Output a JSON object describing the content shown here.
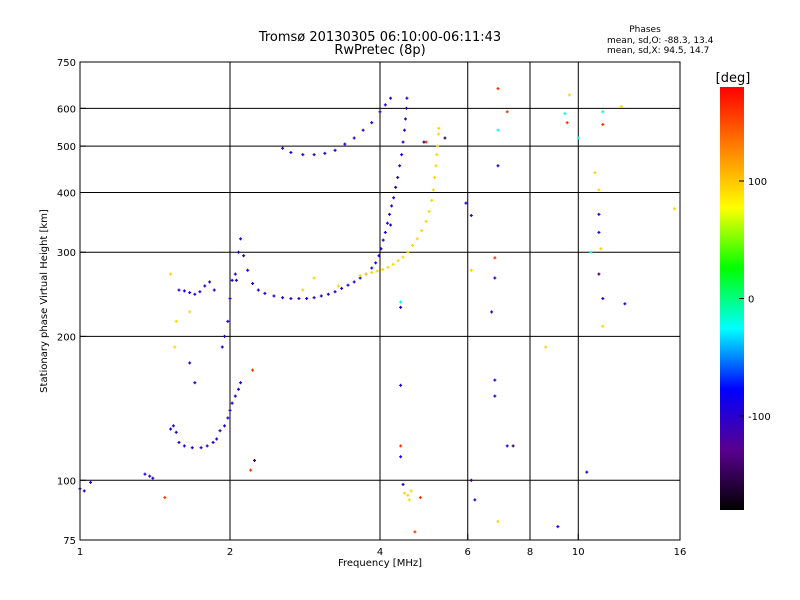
{
  "chart_data": {
    "type": "scatter",
    "title": "Tromsø 20130305 06:10:00-06:11:43",
    "subtitle": "RwPretec (8p)",
    "xlabel": "Frequency [MHz]",
    "ylabel": "Stationary phase Virtual Height [km]",
    "x_scale": "log",
    "y_scale": "log",
    "xlim": [
      1,
      16
    ],
    "ylim": [
      75,
      750
    ],
    "x_ticks": [
      {
        "value": 1,
        "label": "1"
      },
      {
        "value": 2,
        "label": "2"
      },
      {
        "value": 4,
        "label": "4"
      },
      {
        "value": 6,
        "label": "6"
      },
      {
        "value": 8,
        "label": "8"
      },
      {
        "value": 10,
        "label": "10"
      },
      {
        "value": 16,
        "label": "16"
      }
    ],
    "y_ticks": [
      {
        "value": 75,
        "label": "75"
      },
      {
        "value": 100,
        "label": "100"
      },
      {
        "value": 200,
        "label": "200"
      },
      {
        "value": 300,
        "label": "300"
      },
      {
        "value": 400,
        "label": "400"
      },
      {
        "value": 500,
        "label": "500"
      },
      {
        "value": 600,
        "label": "600"
      },
      {
        "value": 750,
        "label": "750"
      }
    ],
    "x_gridlines": [
      2,
      4,
      6,
      8,
      10
    ],
    "y_gridlines": [
      100,
      200,
      300,
      400,
      500,
      600
    ],
    "grid": true,
    "phase_stats": {
      "header": "Phases",
      "line_o": "mean, sd,O:  -88.3, 13.4",
      "line_x": "mean, sd,X:  94.5, 14.7"
    },
    "colorbar": {
      "label": "[deg]",
      "range": [
        -180,
        180
      ],
      "ticks": [
        {
          "value": 100,
          "label": "100"
        },
        {
          "value": 0,
          "label": "0"
        },
        {
          "value": -100,
          "label": "-100"
        }
      ],
      "colors": [
        "#000000",
        "#5a0090",
        "#0000ff",
        "#00ffff",
        "#00ff00",
        "#ffff00",
        "#ff8000",
        "#ff0000"
      ]
    },
    "series": [
      {
        "mode": "O",
        "phase": -95,
        "points": [
          [
            1.0,
            96
          ],
          [
            1.02,
            95
          ],
          [
            1.05,
            99
          ],
          [
            1.35,
            103
          ],
          [
            1.38,
            102
          ],
          [
            1.4,
            101
          ],
          [
            1.52,
            128
          ],
          [
            1.54,
            130
          ],
          [
            1.56,
            126
          ],
          [
            1.58,
            120
          ],
          [
            1.62,
            118
          ],
          [
            1.68,
            117
          ],
          [
            1.75,
            117
          ],
          [
            1.8,
            118
          ],
          [
            1.85,
            120
          ],
          [
            1.88,
            122
          ],
          [
            1.91,
            127
          ],
          [
            1.95,
            130
          ],
          [
            1.98,
            135
          ],
          [
            2.0,
            140
          ],
          [
            2.02,
            145
          ],
          [
            2.05,
            150
          ],
          [
            2.08,
            155
          ],
          [
            2.1,
            160
          ],
          [
            1.66,
            176
          ],
          [
            1.7,
            160
          ],
          [
            1.93,
            190
          ],
          [
            1.95,
            200
          ],
          [
            1.98,
            215
          ],
          [
            2.0,
            240
          ],
          [
            2.02,
            262
          ],
          [
            2.05,
            270
          ],
          [
            1.58,
            250
          ],
          [
            1.62,
            249
          ],
          [
            1.66,
            247
          ],
          [
            1.7,
            245
          ],
          [
            1.74,
            248
          ],
          [
            1.78,
            255
          ],
          [
            1.82,
            260
          ],
          [
            1.86,
            250
          ],
          [
            2.06,
            262
          ],
          [
            2.08,
            300
          ],
          [
            2.1,
            320
          ],
          [
            2.13,
            295
          ],
          [
            2.17,
            275
          ],
          [
            2.22,
            258
          ],
          [
            2.28,
            250
          ],
          [
            2.35,
            246
          ],
          [
            2.45,
            243
          ],
          [
            2.55,
            241
          ],
          [
            2.65,
            240
          ],
          [
            2.75,
            240
          ],
          [
            2.85,
            240
          ],
          [
            2.95,
            241
          ],
          [
            3.05,
            243
          ],
          [
            3.15,
            245
          ],
          [
            3.25,
            248
          ],
          [
            3.35,
            252
          ],
          [
            3.45,
            256
          ],
          [
            3.55,
            260
          ],
          [
            3.65,
            265
          ],
          [
            3.75,
            270
          ],
          [
            3.85,
            278
          ],
          [
            3.92,
            285
          ],
          [
            3.98,
            295
          ],
          [
            4.02,
            305
          ],
          [
            4.06,
            318
          ],
          [
            4.1,
            330
          ],
          [
            4.14,
            345
          ],
          [
            4.18,
            360
          ],
          [
            4.22,
            375
          ],
          [
            4.26,
            390
          ],
          [
            4.3,
            410
          ],
          [
            4.34,
            430
          ],
          [
            4.38,
            455
          ],
          [
            4.42,
            480
          ],
          [
            4.45,
            510
          ],
          [
            4.48,
            540
          ],
          [
            4.5,
            570
          ],
          [
            4.52,
            600
          ],
          [
            4.53,
            630
          ],
          [
            2.55,
            495
          ],
          [
            2.65,
            485
          ],
          [
            2.8,
            480
          ],
          [
            2.95,
            480
          ],
          [
            3.1,
            483
          ],
          [
            3.25,
            490
          ],
          [
            3.4,
            505
          ],
          [
            3.55,
            520
          ],
          [
            3.7,
            540
          ],
          [
            3.85,
            560
          ],
          [
            4.0,
            590
          ],
          [
            4.1,
            610
          ],
          [
            4.2,
            630
          ],
          [
            4.4,
            112
          ],
          [
            4.45,
            98
          ],
          [
            4.4,
            158
          ],
          [
            4.2,
            342
          ],
          [
            5.95,
            380
          ],
          [
            6.8,
            265
          ],
          [
            6.7,
            225
          ],
          [
            7.2,
            118
          ],
          [
            6.8,
            162
          ],
          [
            6.8,
            150
          ],
          [
            6.9,
            455
          ],
          [
            9.1,
            80
          ],
          [
            10.4,
            104
          ],
          [
            11.0,
            360
          ],
          [
            11.0,
            330
          ],
          [
            11.2,
            240
          ],
          [
            12.4,
            234
          ],
          [
            6.2,
            91
          ],
          [
            6.1,
            358
          ],
          [
            4.4,
            230
          ]
        ]
      },
      {
        "mode": "X",
        "phase": 95,
        "points": [
          [
            3.65,
            268
          ],
          [
            3.75,
            270
          ],
          [
            3.85,
            272
          ],
          [
            3.95,
            274
          ],
          [
            4.05,
            276
          ],
          [
            4.15,
            279
          ],
          [
            4.25,
            283
          ],
          [
            4.35,
            288
          ],
          [
            4.45,
            293
          ],
          [
            4.55,
            300
          ],
          [
            4.65,
            310
          ],
          [
            4.75,
            320
          ],
          [
            4.85,
            333
          ],
          [
            4.95,
            348
          ],
          [
            5.02,
            365
          ],
          [
            5.08,
            385
          ],
          [
            5.12,
            405
          ],
          [
            5.15,
            430
          ],
          [
            5.18,
            455
          ],
          [
            5.2,
            480
          ],
          [
            5.22,
            500
          ],
          [
            5.24,
            530
          ],
          [
            5.25,
            545
          ],
          [
            4.48,
            94
          ],
          [
            4.55,
            93
          ],
          [
            4.62,
            95
          ],
          [
            4.58,
            91
          ],
          [
            1.52,
            270
          ],
          [
            1.56,
            215
          ],
          [
            1.55,
            190
          ],
          [
            1.66,
            225
          ],
          [
            2.95,
            265
          ],
          [
            3.3,
            255
          ],
          [
            6.1,
            275
          ],
          [
            6.9,
            82
          ],
          [
            8.6,
            190
          ],
          [
            9.6,
            640
          ],
          [
            10.8,
            440
          ],
          [
            11.0,
            405
          ],
          [
            11.1,
            305
          ],
          [
            11.2,
            210
          ],
          [
            12.2,
            605
          ],
          [
            15.6,
            370
          ],
          [
            2.8,
            250
          ]
        ]
      },
      {
        "mode": "other",
        "phase": 160,
        "points": [
          [
            6.9,
            660
          ],
          [
            7.2,
            590
          ],
          [
            11.2,
            555
          ],
          [
            4.95,
            510
          ],
          [
            4.4,
            118
          ],
          [
            2.2,
            105
          ],
          [
            1.48,
            92
          ],
          [
            9.5,
            560
          ],
          [
            4.82,
            92
          ],
          [
            4.7,
            78
          ],
          [
            2.22,
            170
          ],
          [
            6.8,
            292
          ]
        ]
      },
      {
        "mode": "other",
        "phase": -150,
        "points": [
          [
            5.4,
            520
          ],
          [
            4.9,
            510
          ],
          [
            7.4,
            118
          ],
          [
            2.24,
            110
          ],
          [
            11.0,
            270
          ],
          [
            6.1,
            100
          ]
        ]
      },
      {
        "mode": "other",
        "phase": -20,
        "points": [
          [
            9.4,
            585
          ],
          [
            10.0,
            520
          ],
          [
            6.9,
            540
          ],
          [
            4.4,
            236
          ],
          [
            11.2,
            590
          ],
          [
            10.6,
            300
          ]
        ]
      }
    ]
  }
}
